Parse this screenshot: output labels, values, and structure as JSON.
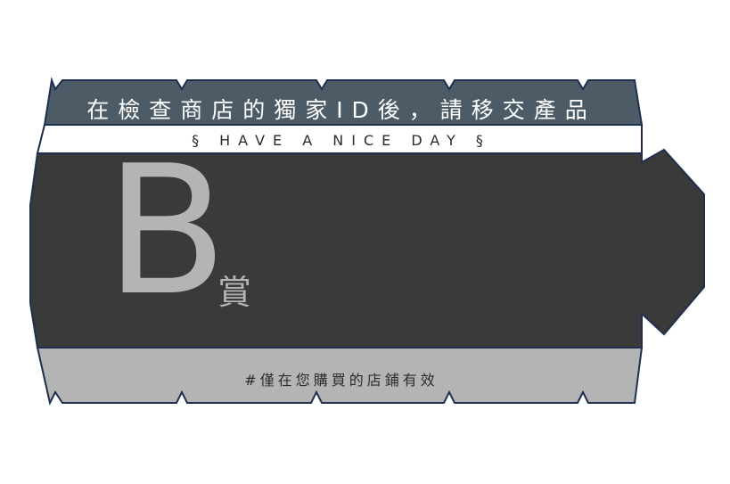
{
  "ticket": {
    "top_title": "在檢查商店的獨家ID後，請移交產品",
    "tagline": "§ HAVE A NICE DAY §",
    "prize_letter": "B",
    "prize_suffix": "賞",
    "footer_note": "#僅在您購買的店鋪有效"
  },
  "colors": {
    "outline": "#1e2f4f",
    "header_band": "#4d5b66",
    "main_body": "#3b3a3a",
    "footer_band": "#b4b4b4",
    "prize_text": "#b4b4b4"
  }
}
